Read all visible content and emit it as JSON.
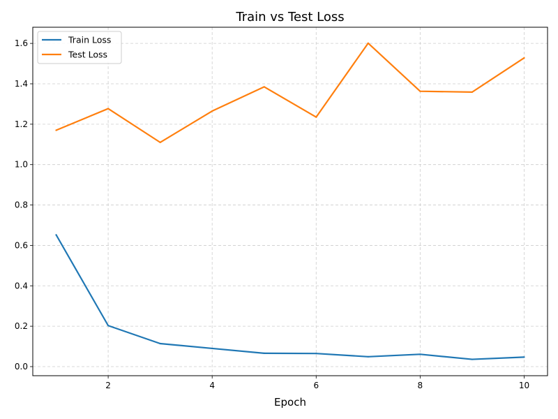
{
  "chart_data": {
    "type": "line",
    "title": "Train vs Test Loss",
    "xlabel": "Epoch",
    "ylabel": "",
    "x": [
      1,
      2,
      3,
      4,
      5,
      6,
      7,
      8,
      9,
      10
    ],
    "xlim": [
      0.55,
      10.45
    ],
    "ylim": [
      -0.045,
      1.68
    ],
    "xticks": [
      2,
      4,
      6,
      8,
      10
    ],
    "yticks": [
      0.0,
      0.2,
      0.4,
      0.6,
      0.8,
      1.0,
      1.2,
      1.4,
      1.6
    ],
    "xtick_labels": [
      "2",
      "4",
      "6",
      "8",
      "10"
    ],
    "ytick_labels": [
      "0.0",
      "0.2",
      "0.4",
      "0.6",
      "0.8",
      "1.0",
      "1.2",
      "1.4",
      "1.6"
    ],
    "grid": true,
    "legend_position": "top-left",
    "series": [
      {
        "name": "Train Loss",
        "color": "#1f77b4",
        "values": [
          0.652,
          0.203,
          0.114,
          0.09,
          0.066,
          0.065,
          0.049,
          0.061,
          0.036,
          0.047
        ]
      },
      {
        "name": "Test Loss",
        "color": "#ff7f0e",
        "values": [
          1.17,
          1.277,
          1.11,
          1.265,
          1.385,
          1.235,
          1.601,
          1.363,
          1.359,
          1.528
        ]
      }
    ]
  }
}
